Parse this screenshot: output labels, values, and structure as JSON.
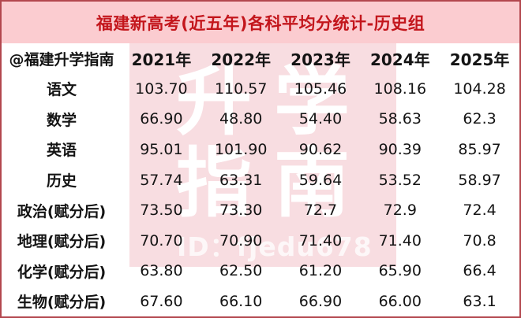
{
  "title": "福建新高考(近五年)各科平均分统计-历史组",
  "watermark": {
    "line1": "升学",
    "line2": "指南",
    "id_text": "ID：fjedu678"
  },
  "colors": {
    "border": "#b3474e",
    "titlebar_bg": "#fbccd0",
    "title_text": "#c3161c",
    "watermark_bg": "#f8dde1",
    "watermark_text": "#ffffff",
    "table_bg": "#ffffff",
    "table_text": "#141414"
  },
  "chart_data": {
    "type": "table",
    "title": "福建新高考(近五年)各科平均分统计-历史组",
    "corner_label": "@福建升学指南",
    "columns": [
      "2021年",
      "2022年",
      "2023年",
      "2024年",
      "2025年"
    ],
    "rows": [
      {
        "label": "语文",
        "values": [
          "103.70",
          "110.57",
          "105.46",
          "108.16",
          "104.28"
        ]
      },
      {
        "label": "数学",
        "values": [
          "66.90",
          "48.80",
          "54.40",
          "58.63",
          "62.3"
        ]
      },
      {
        "label": "英语",
        "values": [
          "95.01",
          "101.90",
          "90.62",
          "90.39",
          "85.97"
        ]
      },
      {
        "label": "历史",
        "values": [
          "57.74",
          "63.31",
          "59.64",
          "53.52",
          "58.97"
        ]
      },
      {
        "label": "政治(赋分后)",
        "values": [
          "73.50",
          "73.30",
          "72.7",
          "72.9",
          "72.4"
        ]
      },
      {
        "label": "地理(赋分后)",
        "values": [
          "70.70",
          "70.90",
          "71.40",
          "71.40",
          "70.8"
        ]
      },
      {
        "label": "化学(赋分后)",
        "values": [
          "63.80",
          "62.50",
          "61.20",
          "65.90",
          "66.4"
        ]
      },
      {
        "label": "生物(赋分后)",
        "values": [
          "67.60",
          "66.10",
          "66.90",
          "66.00",
          "63.1"
        ]
      }
    ]
  }
}
